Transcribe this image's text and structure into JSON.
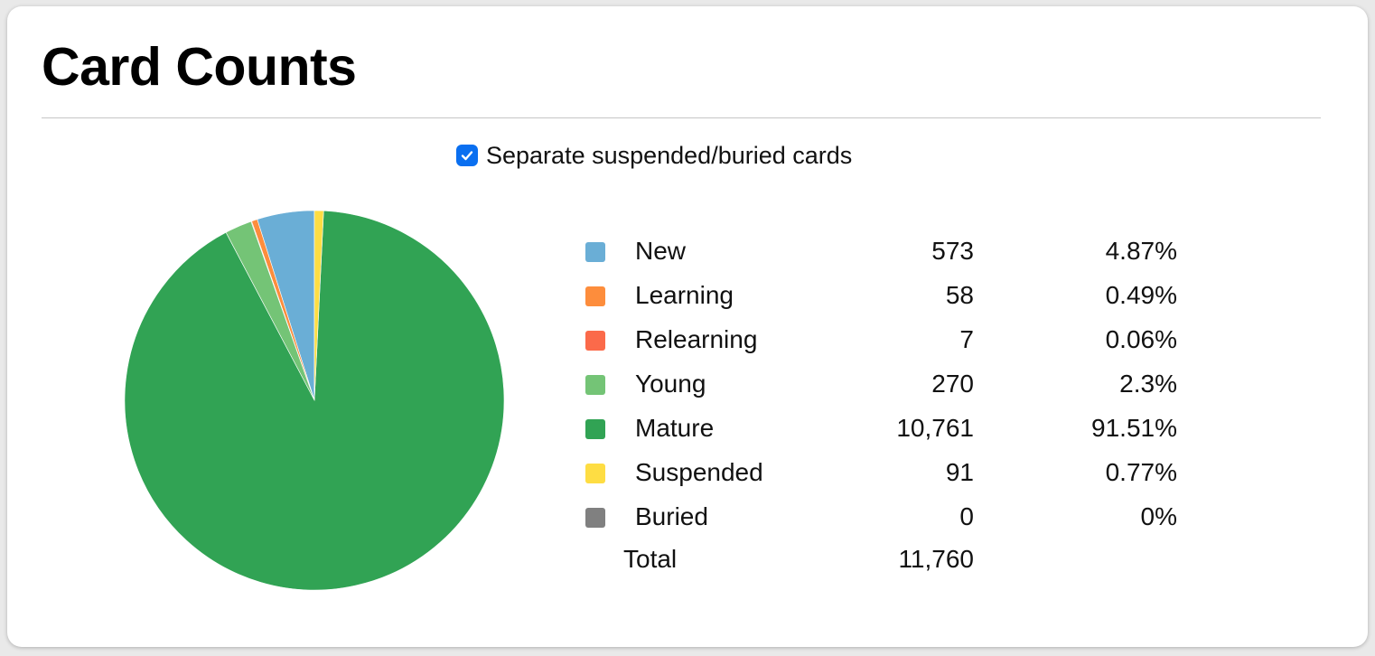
{
  "title": "Card Counts",
  "checkbox": {
    "label": "Separate suspended/buried cards",
    "checked": true
  },
  "chart_data": {
    "type": "pie",
    "categories": [
      "New",
      "Learning",
      "Relearning",
      "Young",
      "Mature",
      "Suspended",
      "Buried"
    ],
    "values": [
      573,
      58,
      7,
      270,
      10761,
      91,
      0
    ],
    "percentages": [
      "4.87%",
      "0.49%",
      "0.06%",
      "2.3%",
      "91.51%",
      "0.77%",
      "0%"
    ],
    "counts_display": [
      "573",
      "58",
      "7",
      "270",
      "10,761",
      "91",
      "0"
    ],
    "colors": [
      "#6aaed6",
      "#fd8d3c",
      "#fb6a4a",
      "#74c476",
      "#31a354",
      "#fedd43",
      "#808080"
    ],
    "total_label": "Total",
    "total": "11,760"
  }
}
